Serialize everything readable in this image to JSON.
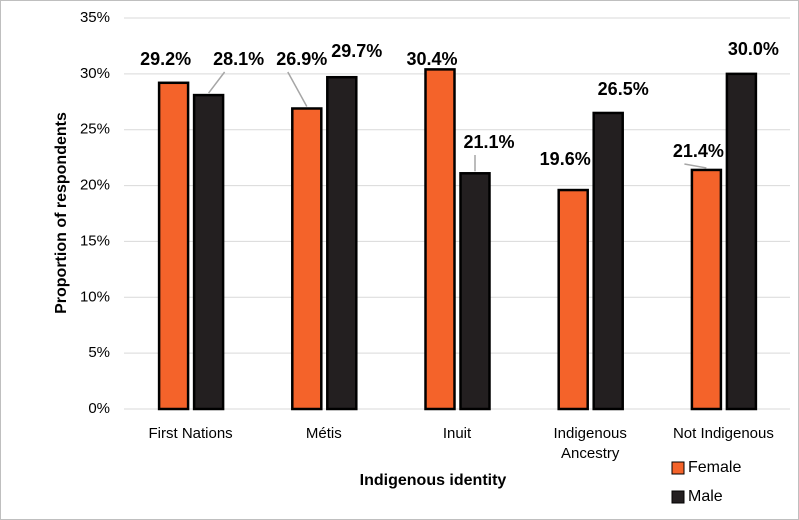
{
  "chart_data": {
    "type": "bar",
    "x_label": "Indigenous identity",
    "y_label": "Proportion of respondents",
    "categories": [
      "First Nations",
      "Métis",
      "Inuit",
      "Indigenous Ancestry",
      "Not Indigenous"
    ],
    "series": [
      {
        "name": "Female",
        "color": "#f4632a",
        "values": [
          29.2,
          26.9,
          30.4,
          19.6,
          21.4
        ],
        "value_labels": [
          "29.2%",
          "26.9%",
          "30.4%",
          "19.6%",
          "21.4%"
        ]
      },
      {
        "name": "Male",
        "color": "#231f20",
        "values": [
          28.1,
          29.7,
          21.1,
          26.5,
          30.0
        ],
        "value_labels": [
          "28.1%",
          "29.7%",
          "21.1%",
          "26.5%",
          "30.0%"
        ]
      }
    ],
    "ylim": [
      0,
      35
    ],
    "yticks": [
      {
        "value": 0,
        "label": "0%"
      },
      {
        "value": 5,
        "label": "5%"
      },
      {
        "value": 10,
        "label": "10%"
      },
      {
        "value": 15,
        "label": "15%"
      },
      {
        "value": 20,
        "label": "20%"
      },
      {
        "value": 25,
        "label": "25%"
      },
      {
        "value": 30,
        "label": "30%"
      },
      {
        "value": 35,
        "label": "35%"
      }
    ],
    "grid": true,
    "legend": "bottom-right"
  }
}
